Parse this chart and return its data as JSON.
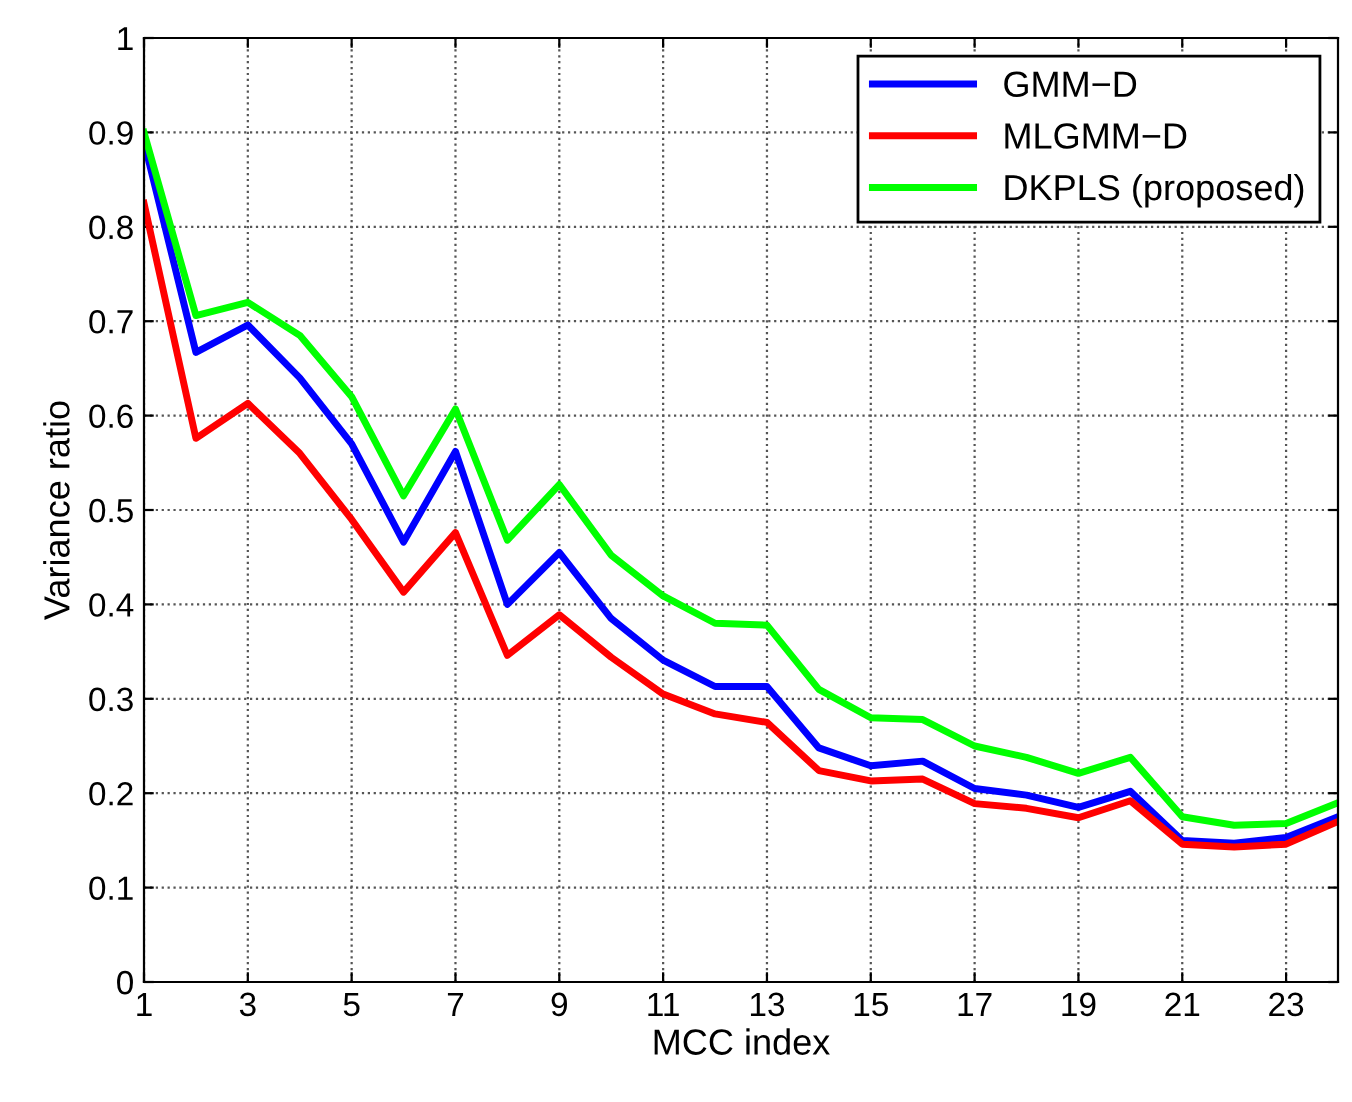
{
  "chart_data": {
    "type": "line",
    "xlabel": "MCC index",
    "ylabel": "Variance ratio",
    "x": [
      1,
      2,
      3,
      4,
      5,
      6,
      7,
      8,
      9,
      10,
      11,
      12,
      13,
      14,
      15,
      16,
      17,
      18,
      19,
      20,
      21,
      22,
      23,
      24
    ],
    "series": [
      {
        "name": "GMM−D",
        "color": "#0000ff",
        "values": [
          0.89,
          0.667,
          0.696,
          0.64,
          0.57,
          0.466,
          0.562,
          0.4,
          0.455,
          0.385,
          0.341,
          0.313,
          0.313,
          0.248,
          0.229,
          0.234,
          0.205,
          0.198,
          0.185,
          0.202,
          0.15,
          0.147,
          0.153,
          0.175
        ]
      },
      {
        "name": "MLGMM−D",
        "color": "#ff0000",
        "values": [
          0.825,
          0.576,
          0.613,
          0.56,
          0.49,
          0.413,
          0.476,
          0.346,
          0.389,
          0.344,
          0.305,
          0.284,
          0.275,
          0.224,
          0.213,
          0.215,
          0.189,
          0.184,
          0.174,
          0.192,
          0.146,
          0.143,
          0.146,
          0.17
        ]
      },
      {
        "name": "DKPLS (proposed)",
        "color": "#00ff00",
        "values": [
          0.9,
          0.706,
          0.72,
          0.685,
          0.62,
          0.515,
          0.607,
          0.468,
          0.527,
          0.452,
          0.409,
          0.38,
          0.378,
          0.31,
          0.28,
          0.278,
          0.25,
          0.238,
          0.221,
          0.238,
          0.175,
          0.166,
          0.168,
          0.19
        ]
      }
    ],
    "xlim": [
      1,
      24
    ],
    "xticks": [
      1,
      3,
      5,
      7,
      9,
      11,
      13,
      15,
      17,
      19,
      21,
      23
    ],
    "ylim": [
      0,
      1
    ],
    "yticks": [
      0,
      0.1,
      0.2,
      0.3,
      0.4,
      0.5,
      0.6,
      0.7,
      0.8,
      0.9,
      1
    ],
    "grid": true,
    "legend": "top right",
    "marker": "none",
    "line_style": "solid"
  }
}
